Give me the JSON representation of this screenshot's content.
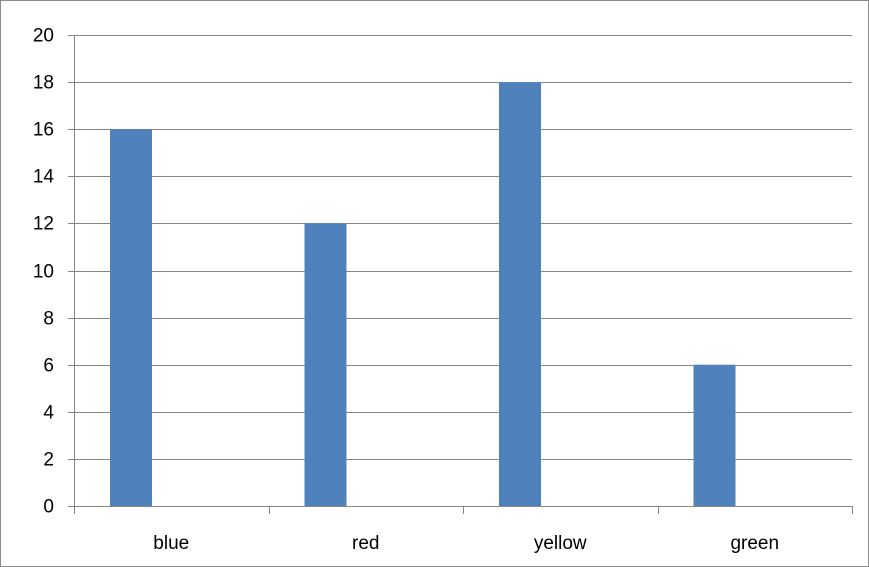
{
  "chart_data": {
    "type": "bar",
    "title": "",
    "categories": [
      "blue",
      "red",
      "yellow",
      "green"
    ],
    "values": [
      16,
      12,
      18,
      6
    ],
    "ylim": [
      0,
      20
    ],
    "yticks": [
      0,
      2,
      4,
      6,
      8,
      10,
      12,
      14,
      16,
      18,
      20
    ],
    "grid": true,
    "xlabel": "",
    "ylabel": "",
    "bar_color": "#4f81bd"
  }
}
